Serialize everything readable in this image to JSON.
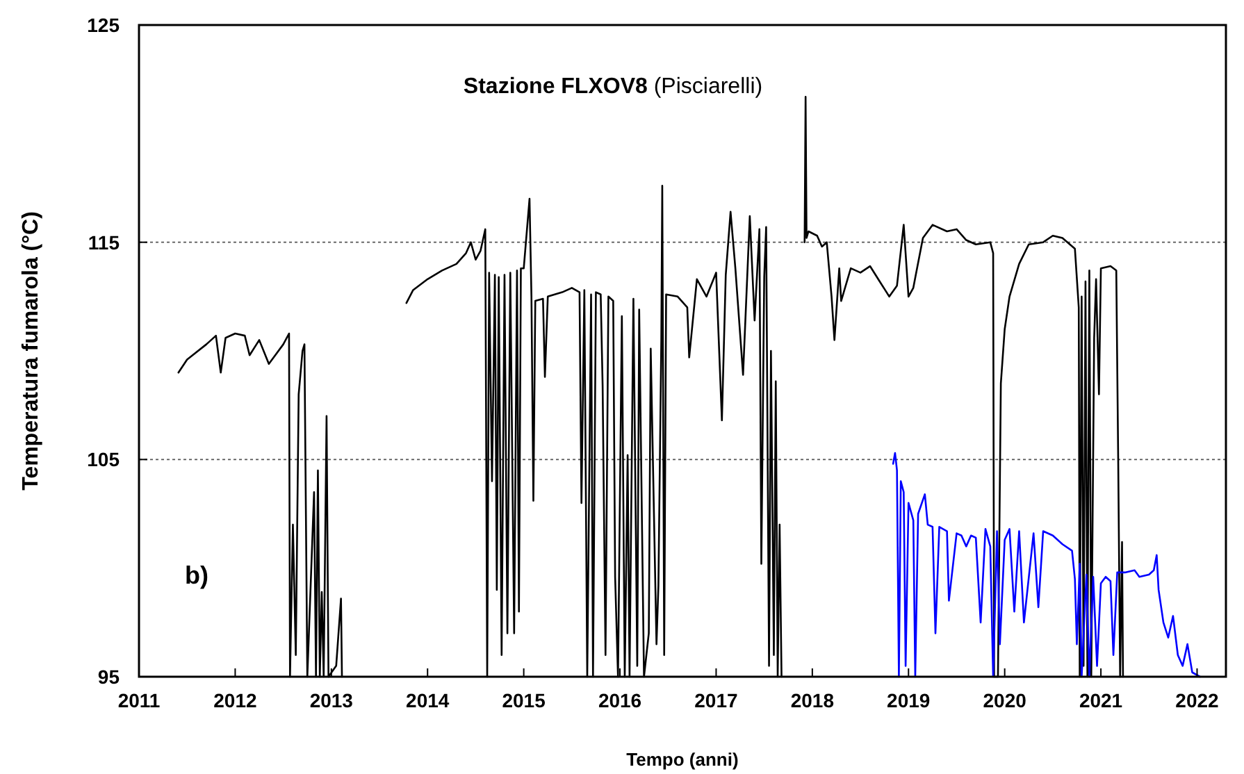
{
  "chart_data": {
    "type": "line",
    "title": "Stazione FLXOV8 (Pisciarelli)",
    "xlabel": "Tempo (anni)",
    "ylabel": "Temperatura fumarola  (°C)",
    "annotations": [
      "b)"
    ],
    "xlim": [
      2011,
      2022.3
    ],
    "xticks": [
      2011,
      2012,
      2013,
      2014,
      2015,
      2016,
      2017,
      2018,
      2019,
      2020,
      2021,
      2022
    ],
    "ylim": [
      95,
      125
    ],
    "yticks": [
      95,
      105,
      115,
      125
    ],
    "grid": "y",
    "marker": "none",
    "line_style": "solid",
    "series": [
      {
        "color": "#000000",
        "x": [
          2011.41,
          2011.5,
          2011.7,
          2011.8,
          2011.85,
          2011.9,
          2012.0,
          2012.1,
          2012.15,
          2012.25,
          2012.35,
          2012.5,
          2012.56,
          2012.57,
          2012.6,
          2012.63,
          2012.66,
          2012.7,
          2012.72,
          2012.75,
          2012.82,
          2012.84,
          2012.86,
          2012.88,
          2012.9,
          2012.92,
          2012.95,
          2012.97,
          2013.05,
          2013.1,
          2013.11,
          2013.5,
          2013.78,
          2013.85,
          2014.0,
          2014.15,
          2014.3,
          2014.4,
          2014.45,
          2014.5,
          2014.55,
          2014.6,
          2014.62,
          2014.64,
          2014.67,
          2014.7,
          2014.72,
          2014.74,
          2014.77,
          2014.8,
          2014.83,
          2014.86,
          2014.9,
          2014.93,
          2014.95,
          2014.97,
          2015.0,
          2015.06,
          2015.08,
          2015.1,
          2015.12,
          2015.2,
          2015.22,
          2015.25,
          2015.4,
          2015.5,
          2015.58,
          2015.6,
          2015.63,
          2015.66,
          2015.7,
          2015.72,
          2015.75,
          2015.8,
          2015.82,
          2015.85,
          2015.88,
          2015.93,
          2015.95,
          2015.98,
          2016.02,
          2016.05,
          2016.08,
          2016.1,
          2016.14,
          2016.18,
          2016.2,
          2016.25,
          2016.3,
          2016.32,
          2016.38,
          2016.4,
          2016.43,
          2016.44,
          2016.46,
          2016.48,
          2016.6,
          2016.7,
          2016.72,
          2016.8,
          2016.9,
          2017.0,
          2017.06,
          2017.1,
          2017.15,
          2017.2,
          2017.28,
          2017.35,
          2017.4,
          2017.45,
          2017.47,
          2017.5,
          2017.52,
          2017.55,
          2017.57,
          2017.6,
          2017.62,
          2017.64,
          2017.66,
          2017.68,
          2017.8,
          2017.92,
          2017.93,
          2017.94,
          2017.96,
          2018.05,
          2018.1,
          2018.15,
          2018.2,
          2018.23,
          2018.28,
          2018.3,
          2018.4,
          2018.5,
          2018.6,
          2018.7,
          2018.8,
          2018.88,
          2018.95,
          2019.0,
          2019.05,
          2019.08,
          2019.15,
          2019.25,
          2019.4,
          2019.5,
          2019.6,
          2019.7,
          2019.85,
          2019.88,
          2019.89,
          2019.93,
          2019.96,
          2020.0,
          2020.05,
          2020.15,
          2020.25,
          2020.4,
          2020.5,
          2020.6,
          2020.73,
          2020.77,
          2020.78,
          2020.8,
          2020.82,
          2020.84,
          2020.86,
          2020.88,
          2020.9,
          2020.93,
          2020.95,
          2020.98,
          2021.0,
          2021.1,
          2021.16,
          2021.18,
          2021.2,
          2021.22,
          2021.23
        ],
        "values": [
          109.0,
          109.6,
          110.3,
          110.7,
          109.0,
          110.6,
          110.8,
          110.7,
          109.8,
          110.5,
          109.4,
          110.3,
          110.8,
          95,
          102,
          96,
          108,
          110.0,
          110.3,
          95,
          103.5,
          95,
          104.5,
          95,
          98.9,
          95,
          107,
          95,
          95.5,
          98.6,
          95,
          null,
          112.2,
          112.8,
          113.3,
          113.7,
          114.0,
          114.5,
          115.0,
          114.2,
          114.6,
          115.6,
          95,
          113.6,
          104,
          113.5,
          99,
          113.4,
          96,
          113.5,
          97,
          113.6,
          97,
          113.7,
          98,
          113.8,
          113.8,
          117.0,
          112.5,
          103.1,
          112.3,
          112.4,
          108.8,
          112.5,
          112.7,
          112.9,
          112.7,
          103,
          112.8,
          95,
          112.6,
          95,
          112.7,
          112.6,
          108.4,
          96,
          112.5,
          112.3,
          99.6,
          95,
          111.6,
          95,
          105.2,
          95,
          112.4,
          95.5,
          111.9,
          95,
          97,
          110.1,
          96.5,
          99.2,
          110.5,
          117.6,
          96,
          112.6,
          112.5,
          112.0,
          109.7,
          113.3,
          112.5,
          113.6,
          106.8,
          113.5,
          116.4,
          113.8,
          108.9,
          116.2,
          111.4,
          115.6,
          100.2,
          113.4,
          115.7,
          95.5,
          110.0,
          96,
          108.6,
          95,
          102,
          95,
          null,
          115.0,
          121.7,
          115.2,
          115.5,
          115.3,
          114.8,
          115.0,
          112.5,
          110.5,
          113.8,
          112.3,
          113.8,
          113.6,
          113.9,
          113.2,
          112.5,
          113.0,
          115.8,
          112.5,
          112.9,
          113.6,
          115.2,
          115.8,
          115.5,
          115.6,
          115.1,
          114.9,
          115.0,
          114.5,
          95,
          95,
          108.5,
          111.0,
          112.5,
          114.0,
          114.9,
          115.0,
          115.3,
          115.2,
          114.7,
          112.0,
          95,
          112.5,
          95.5,
          113.2,
          95,
          113.7,
          95,
          110.6,
          113.3,
          108,
          113.8,
          113.9,
          113.7,
          105,
          95,
          101.2,
          95
        ]
      },
      {
        "color": "#0000ff",
        "x": [
          2018.84,
          2018.86,
          2018.88,
          2018.9,
          2018.92,
          2018.95,
          2018.97,
          2019.0,
          2019.05,
          2019.07,
          2019.1,
          2019.17,
          2019.2,
          2019.25,
          2019.28,
          2019.32,
          2019.4,
          2019.42,
          2019.5,
          2019.55,
          2019.6,
          2019.65,
          2019.7,
          2019.75,
          2019.8,
          2019.85,
          2019.88,
          2019.92,
          2019.95,
          2020.0,
          2020.05,
          2020.1,
          2020.15,
          2020.2,
          2020.3,
          2020.35,
          2020.4,
          2020.5,
          2020.6,
          2020.7,
          2020.73,
          2020.75,
          2020.78,
          2020.8,
          2020.85,
          2020.88,
          2020.92,
          2020.96,
          2021.0,
          2021.05,
          2021.1,
          2021.13,
          2021.17,
          2021.25,
          2021.35,
          2021.4,
          2021.5,
          2021.55,
          2021.58,
          2021.6,
          2021.65,
          2021.7,
          2021.75,
          2021.8,
          2021.85,
          2021.9,
          2021.95,
          2022.03
        ],
        "values": [
          104.8,
          105.3,
          104.5,
          95,
          104.0,
          103.5,
          95.5,
          103.0,
          102.2,
          95,
          102.5,
          103.4,
          102.0,
          101.9,
          97,
          101.9,
          101.7,
          98.5,
          101.6,
          101.5,
          101.0,
          101.5,
          101.4,
          97.5,
          101.8,
          101.0,
          95,
          101.7,
          96.5,
          101.3,
          101.8,
          98,
          101.7,
          97.5,
          101.6,
          98.2,
          101.7,
          101.5,
          101.1,
          100.8,
          99.5,
          96.5,
          100.2,
          95,
          99.7,
          95,
          99.6,
          95.5,
          99.3,
          99.6,
          99.4,
          96,
          99.8,
          99.8,
          99.9,
          99.6,
          99.7,
          99.9,
          100.6,
          99.0,
          97.5,
          96.8,
          97.8,
          96.0,
          95.5,
          96.5,
          95.2,
          95
        ]
      }
    ]
  }
}
